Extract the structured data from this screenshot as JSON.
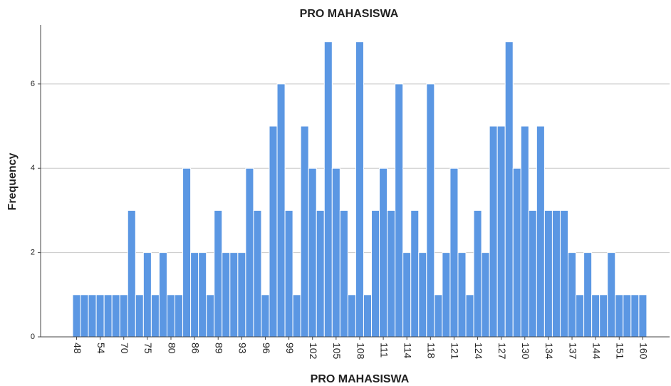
{
  "chart_data": {
    "type": "bar",
    "title": "PRO MAHASISWA",
    "x_label": "PRO MAHASISWA",
    "y_label": "Frequency",
    "categories": [
      "48",
      null,
      null,
      "54",
      null,
      null,
      "70",
      null,
      null,
      "75",
      null,
      null,
      "80",
      null,
      null,
      "86",
      null,
      null,
      "89",
      null,
      null,
      "93",
      null,
      null,
      "96",
      null,
      null,
      "99",
      null,
      null,
      "102",
      null,
      null,
      "105",
      null,
      null,
      "108",
      null,
      null,
      "111",
      null,
      null,
      "114",
      null,
      null,
      "118",
      null,
      null,
      "121",
      null,
      null,
      "124",
      null,
      null,
      "127",
      null,
      null,
      "130",
      null,
      null,
      "134",
      null,
      null,
      "137",
      null,
      null,
      "144",
      null,
      null,
      "151",
      null,
      null,
      "160"
    ],
    "values": [
      1,
      1,
      1,
      1,
      1,
      1,
      1,
      3,
      1,
      2,
      1,
      2,
      1,
      1,
      4,
      2,
      2,
      1,
      3,
      2,
      2,
      2,
      4,
      3,
      1,
      5,
      6,
      3,
      1,
      5,
      4,
      3,
      7,
      4,
      3,
      1,
      7,
      1,
      3,
      4,
      3,
      6,
      2,
      3,
      2,
      6,
      1,
      2,
      4,
      2,
      1,
      3,
      2,
      5,
      5,
      7,
      4,
      5,
      3,
      5,
      3,
      3,
      3,
      2,
      1,
      2,
      1,
      1,
      2,
      1,
      1,
      1,
      1
    ],
    "color": "#5b97e3",
    "ylim": [
      0,
      7.4
    ],
    "yticks": [
      0,
      2,
      4,
      6
    ],
    "grid": true
  }
}
